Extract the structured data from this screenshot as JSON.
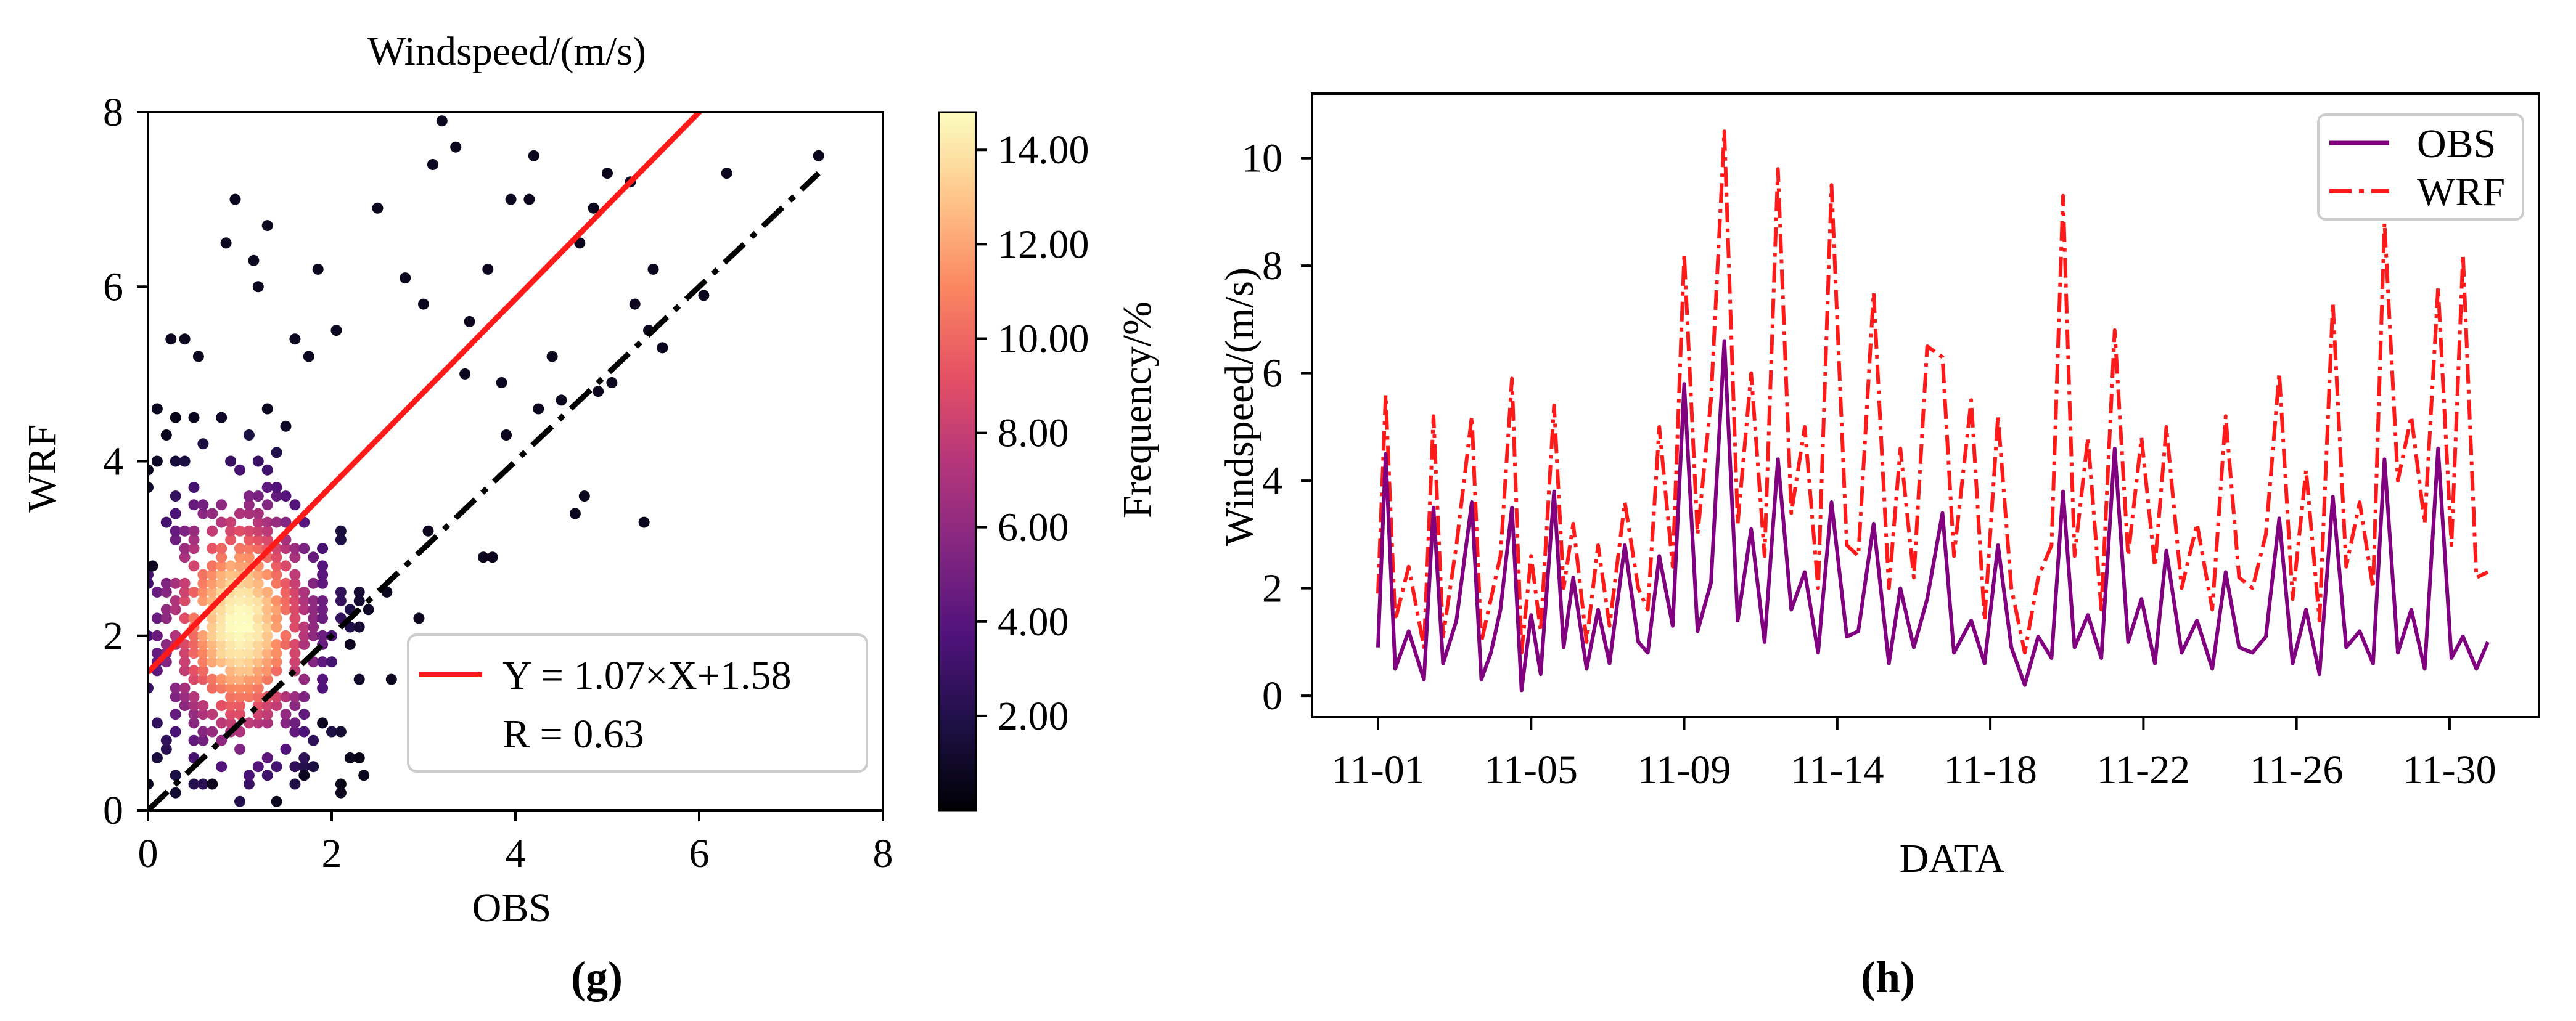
{
  "chart_data": [
    {
      "type": "scatter",
      "panel_label": "(g)",
      "title": "Windspeed/(m/s)",
      "xlabel": "OBS",
      "ylabel": "WRF",
      "xlim": [
        0,
        8
      ],
      "ylim": [
        0,
        8
      ],
      "xticks": [
        "0",
        "2",
        "4",
        "6",
        "8"
      ],
      "yticks": [
        "0",
        "2",
        "4",
        "6",
        "8"
      ],
      "fit": {
        "slope": 1.07,
        "intercept": 1.58,
        "label": "Y = 1.07×X+1.58",
        "color": "#ff1a1a"
      },
      "reference_line": {
        "slope": 1,
        "intercept": 0,
        "style": "dash-dot",
        "color": "#000000"
      },
      "stats_label": "R = 0.63",
      "colorbar": {
        "label": "Frequency/%",
        "range": [
          0,
          14.8
        ],
        "ticks": [
          "2.00",
          "4.00",
          "6.00",
          "8.00",
          "10.00",
          "12.00",
          "14.00"
        ],
        "tick_values": [
          2,
          4,
          6,
          8,
          10,
          12,
          14
        ],
        "colormap": "magma"
      },
      "points": {
        "x": [
          3.2,
          3.35,
          3.1,
          4.2,
          5.0,
          4.85,
          7.3,
          6.3,
          5.25,
          5.5,
          4.7,
          3.95,
          4.15,
          3.7,
          3.5,
          5.3,
          5.45,
          6.05,
          4.4,
          3.9,
          0.85,
          0.95,
          1.2,
          1.3,
          1.15,
          1.6,
          1.85,
          1.75,
          2.05,
          2.5,
          2.8,
          3.0,
          3.45,
          3.85,
          4.25,
          4.5,
          4.9,
          5.6,
          5.05,
          4.65,
          4.75,
          3.05,
          2.6,
          2.2,
          0.25,
          0.4,
          0.55,
          0.1,
          0.05,
          1.9,
          2.35,
          2.65,
          5.4,
          3.65,
          3.75,
          2.95,
          1.4,
          1.7,
          2.1,
          0.7
        ],
        "y": [
          7.9,
          7.6,
          7.4,
          7.5,
          7.3,
          6.9,
          7.5,
          7.3,
          7.2,
          6.2,
          6.5,
          7.0,
          7.0,
          6.2,
          5.6,
          5.8,
          5.5,
          5.9,
          5.2,
          4.3,
          6.5,
          7.0,
          6.0,
          6.7,
          6.3,
          5.4,
          6.2,
          5.2,
          5.5,
          6.9,
          6.1,
          5.8,
          5.0,
          4.9,
          4.6,
          4.7,
          4.8,
          5.3,
          4.9,
          3.4,
          3.6,
          3.2,
          2.5,
          1.9,
          5.4,
          5.4,
          5.2,
          4.6,
          2.8,
          1.0,
          0.4,
          1.5,
          3.3,
          2.9,
          2.9,
          2.2,
          0.1,
          0.4,
          0.2,
          0.3
        ]
      }
    },
    {
      "type": "line",
      "panel_label": "(h)",
      "xlabel": "DATA",
      "ylabel": "Windspeed/(m/s)",
      "ylim": [
        -0.4,
        11.2
      ],
      "yticks": [
        "0",
        "2",
        "4",
        "6",
        "8",
        "10"
      ],
      "xlim": [
        1,
        30
      ],
      "x_tick_positions": [
        1,
        5,
        9,
        13,
        17,
        21,
        25,
        29
      ],
      "x_tick_labels": [
        "11-01",
        "11-05",
        "11-09",
        "11-14",
        "11-18",
        "11-22",
        "11-26",
        "11-30"
      ],
      "series": [
        {
          "name": "OBS",
          "color": "#800080",
          "style": "solid",
          "x": [
            1.0,
            1.2,
            1.45,
            1.8,
            2.2,
            2.45,
            2.7,
            3.05,
            3.45,
            3.7,
            3.95,
            4.2,
            4.5,
            4.75,
            5.0,
            5.25,
            5.6,
            5.85,
            6.1,
            6.45,
            6.75,
            7.05,
            7.45,
            7.8,
            8.05,
            8.35,
            8.7,
            9.0,
            9.35,
            9.7,
            10.05,
            10.4,
            10.75,
            11.1,
            11.45,
            11.8,
            12.15,
            12.5,
            12.85,
            13.25,
            13.55,
            13.95,
            14.35,
            14.65,
            15.0,
            15.35,
            15.75,
            16.05,
            16.5,
            16.85,
            17.2,
            17.55,
            17.9,
            18.25,
            18.6,
            18.9,
            19.2,
            19.55,
            19.9,
            20.25,
            20.6,
            20.95,
            21.3,
            21.6,
            22.0,
            22.4,
            22.8,
            23.15,
            23.5,
            23.85,
            24.2,
            24.55,
            24.9,
            25.25,
            25.6,
            25.95,
            26.3,
            26.65,
            27.0,
            27.3,
            27.65,
            28.0,
            28.35,
            28.7,
            29.05,
            29.35,
            29.7,
            30.0
          ],
          "y": [
            0.9,
            4.5,
            0.5,
            1.2,
            0.3,
            3.5,
            0.6,
            1.4,
            3.6,
            0.3,
            0.8,
            1.6,
            3.5,
            0.1,
            1.5,
            0.4,
            3.8,
            0.9,
            2.2,
            0.5,
            1.6,
            0.6,
            2.8,
            1.0,
            0.8,
            2.6,
            1.3,
            5.8,
            1.2,
            2.1,
            6.6,
            1.4,
            3.1,
            1.0,
            4.4,
            1.6,
            2.3,
            0.8,
            3.6,
            1.1,
            1.2,
            3.2,
            0.6,
            2.0,
            0.9,
            1.8,
            3.4,
            0.8,
            1.4,
            0.6,
            2.8,
            0.9,
            0.2,
            1.1,
            0.7,
            3.8,
            0.9,
            1.5,
            0.7,
            4.6,
            1.0,
            1.8,
            0.6,
            2.7,
            0.8,
            1.4,
            0.5,
            2.3,
            0.9,
            0.8,
            1.1,
            3.3,
            0.6,
            1.6,
            0.4,
            3.7,
            0.9,
            1.2,
            0.6,
            4.4,
            0.8,
            1.6,
            0.5,
            4.6,
            0.7,
            1.1,
            0.5,
            1.0
          ]
        },
        {
          "name": "WRF",
          "color": "#ff1a1a",
          "style": "dash-dot",
          "x": [
            1.0,
            1.2,
            1.45,
            1.8,
            2.2,
            2.45,
            2.7,
            3.05,
            3.45,
            3.7,
            3.95,
            4.2,
            4.5,
            4.75,
            5.0,
            5.25,
            5.6,
            5.85,
            6.1,
            6.45,
            6.75,
            7.05,
            7.45,
            7.8,
            8.05,
            8.35,
            8.7,
            9.0,
            9.35,
            9.7,
            10.05,
            10.4,
            10.75,
            11.1,
            11.45,
            11.8,
            12.15,
            12.5,
            12.85,
            13.25,
            13.55,
            13.95,
            14.35,
            14.65,
            15.0,
            15.35,
            15.75,
            16.05,
            16.5,
            16.85,
            17.2,
            17.55,
            17.9,
            18.25,
            18.6,
            18.9,
            19.2,
            19.55,
            19.9,
            20.25,
            20.6,
            20.95,
            21.3,
            21.6,
            22.0,
            22.4,
            22.8,
            23.15,
            23.5,
            23.85,
            24.2,
            24.55,
            24.9,
            25.25,
            25.6,
            25.95,
            26.3,
            26.65,
            27.0,
            27.3,
            27.65,
            28.0,
            28.35,
            28.7,
            29.05,
            29.35,
            29.7,
            30.0
          ],
          "y": [
            1.9,
            5.6,
            1.4,
            2.4,
            0.9,
            5.2,
            1.1,
            2.8,
            5.2,
            1.0,
            1.8,
            2.6,
            5.9,
            0.8,
            2.6,
            1.2,
            5.4,
            2.0,
            3.2,
            1.0,
            2.8,
            1.3,
            3.6,
            2.0,
            1.6,
            5.0,
            2.4,
            8.2,
            3.0,
            5.5,
            10.5,
            3.2,
            6.0,
            2.6,
            9.8,
            3.4,
            5.0,
            2.0,
            9.5,
            2.8,
            2.6,
            7.5,
            2.0,
            4.6,
            2.2,
            6.5,
            6.3,
            2.6,
            5.5,
            1.4,
            5.2,
            2.0,
            0.8,
            2.2,
            2.8,
            9.3,
            2.6,
            4.8,
            1.6,
            6.8,
            2.6,
            4.8,
            2.4,
            5.0,
            2.0,
            3.2,
            1.6,
            5.2,
            2.2,
            2.0,
            3.0,
            6.0,
            1.8,
            4.2,
            1.4,
            7.3,
            2.4,
            3.6,
            2.0,
            8.8,
            4.0,
            5.2,
            3.2,
            7.6,
            2.8,
            8.2,
            2.2,
            2.3
          ]
        }
      ]
    }
  ]
}
